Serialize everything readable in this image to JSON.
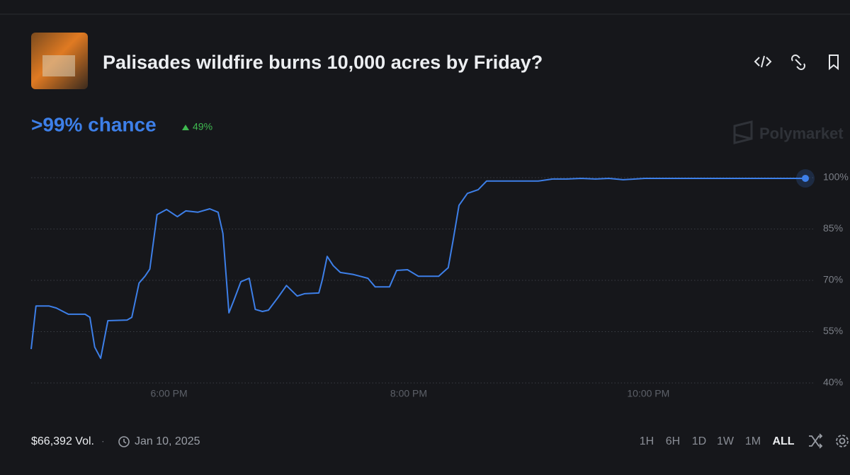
{
  "header": {
    "title": "Palisades wildfire burns 10,000 acres by Friday?",
    "chance": ">99% chance",
    "change": "49%"
  },
  "watermark": "Polymarket",
  "chart_data": {
    "type": "line",
    "color": "#3d7fe8",
    "grid": true,
    "x": [
      16.85,
      16.89,
      17.0,
      17.06,
      17.16,
      17.3,
      17.34,
      17.38,
      17.43,
      17.49,
      17.65,
      17.69,
      17.75,
      17.8,
      17.84,
      17.9,
      17.98,
      18.07,
      18.14,
      18.24,
      18.34,
      18.41,
      18.45,
      18.5,
      18.54,
      18.6,
      18.67,
      18.72,
      18.78,
      18.83,
      18.91,
      18.98,
      19.07,
      19.13,
      19.25,
      19.28,
      19.32,
      19.37,
      19.43,
      19.54,
      19.66,
      19.72,
      19.84,
      19.9,
      19.99,
      20.08,
      20.25,
      20.33,
      20.37,
      20.42,
      20.49,
      20.58,
      20.65,
      20.73,
      21.08,
      21.2,
      21.32,
      21.44,
      21.56,
      21.67,
      21.79,
      21.97,
      23.31
    ],
    "values": [
      49.9,
      62.5,
      62.5,
      61.9,
      60.1,
      60.1,
      59.2,
      50.5,
      47.2,
      58.2,
      58.4,
      59.2,
      69.2,
      71.2,
      73.3,
      89.2,
      90.7,
      88.6,
      90.3,
      89.9,
      90.9,
      89.9,
      83.7,
      60.5,
      64.0,
      69.6,
      70.6,
      61.5,
      60.9,
      61.3,
      65.0,
      68.5,
      65.4,
      66.1,
      66.3,
      70.2,
      77.0,
      74.3,
      72.3,
      71.7,
      70.6,
      68.1,
      68.1,
      72.9,
      73.1,
      71.2,
      71.2,
      73.7,
      81.6,
      91.9,
      95.4,
      96.5,
      99.0,
      99.0,
      99.0,
      99.6,
      99.6,
      99.8,
      99.6,
      99.8,
      99.4,
      99.8,
      99.8
    ],
    "xlim": [
      16.85,
      23.31
    ],
    "xticks": [
      {
        "value": 18,
        "label": "6:00 PM"
      },
      {
        "value": 20,
        "label": "8:00 PM"
      },
      {
        "value": 22,
        "label": "10:00 PM"
      }
    ],
    "ylim": [
      40,
      100
    ],
    "yticks": [
      {
        "value": 40,
        "label": "40%"
      },
      {
        "value": 55,
        "label": "55%"
      },
      {
        "value": 70,
        "label": "70%"
      },
      {
        "value": 85,
        "label": "85%"
      },
      {
        "value": 100,
        "label": "100%"
      }
    ]
  },
  "footer": {
    "volume": "$66,392 Vol.",
    "date": "Jan 10, 2025",
    "ranges": [
      "1H",
      "6H",
      "1D",
      "1W",
      "1M",
      "ALL"
    ]
  }
}
